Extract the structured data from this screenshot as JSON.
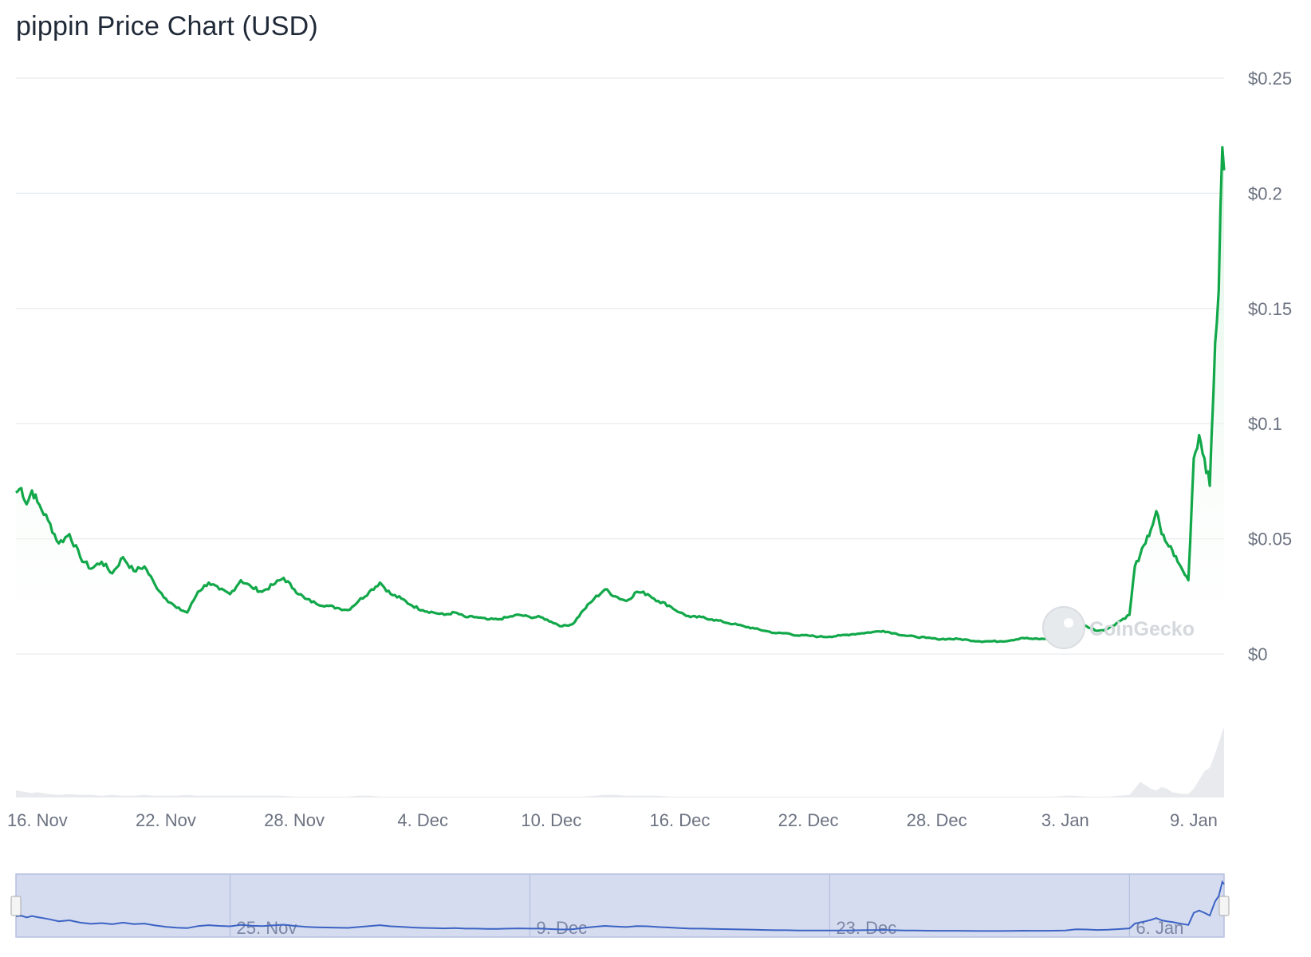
{
  "chart_title": "pippin Price Chart (USD)",
  "watermark": "CoinGecko",
  "colors": {
    "line": "#12a84a",
    "area_top": "#d8f2df",
    "grid": "#e6e9ee",
    "volume": "#e8eaee",
    "navigator_fill": "#d5dcef",
    "navigator_line": "#3c63c4",
    "navigator_border": "#b5c0e0"
  },
  "chart_data": {
    "type": "line",
    "title": "pippin Price Chart (USD)",
    "xlabel": "",
    "ylabel": "",
    "y_ticks": [
      "$0",
      "$0.05",
      "$0.1",
      "$0.15",
      "$0.2",
      "$0.25"
    ],
    "y_tick_values": [
      0,
      0.05,
      0.1,
      0.15,
      0.2,
      0.25
    ],
    "ylim": [
      0,
      0.25
    ],
    "xlim": [
      "2024-11-15T00:00",
      "2025-01-10T10:00"
    ],
    "x_ticks": [
      "16. Nov",
      "22. Nov",
      "28. Nov",
      "4. Dec",
      "10. Dec",
      "16. Dec",
      "22. Dec",
      "28. Dec",
      "3. Jan",
      "9. Jan"
    ],
    "x_tick_dates": [
      "2024-11-16",
      "2024-11-22",
      "2024-11-28",
      "2024-12-04",
      "2024-12-10",
      "2024-12-16",
      "2024-12-22",
      "2024-12-28",
      "2025-01-03",
      "2025-01-09"
    ],
    "grid": true,
    "legend": "none",
    "series": [
      {
        "x": [
          "2024-11-15T00:00",
          "2024-11-15T06:00",
          "2024-11-15T12:00",
          "2024-11-15T18:00",
          "2024-11-16T00:00",
          "2024-11-16T12:00",
          "2024-11-17T00:00",
          "2024-11-17T12:00",
          "2024-11-18T00:00",
          "2024-11-18T12:00",
          "2024-11-19T00:00",
          "2024-11-19T12:00",
          "2024-11-20T00:00",
          "2024-11-20T12:00",
          "2024-11-21T00:00",
          "2024-11-21T12:00",
          "2024-11-22T00:00",
          "2024-11-22T12:00",
          "2024-11-23T00:00",
          "2024-11-23T12:00",
          "2024-11-24T00:00",
          "2024-11-24T12:00",
          "2024-11-25T00:00",
          "2024-11-25T12:00",
          "2024-11-26T00:00",
          "2024-11-26T12:00",
          "2024-11-27T00:00",
          "2024-11-27T12:00",
          "2024-11-28T00:00",
          "2024-11-28T12:00",
          "2024-11-29T00:00",
          "2024-11-29T12:00",
          "2024-11-30T00:00",
          "2024-11-30T12:00",
          "2024-12-01T00:00",
          "2024-12-01T12:00",
          "2024-12-02T00:00",
          "2024-12-02T12:00",
          "2024-12-03T00:00",
          "2024-12-03T12:00",
          "2024-12-04T00:00",
          "2024-12-04T12:00",
          "2024-12-05T00:00",
          "2024-12-05T12:00",
          "2024-12-06T00:00",
          "2024-12-06T12:00",
          "2024-12-07T00:00",
          "2024-12-07T12:00",
          "2024-12-08T00:00",
          "2024-12-08T12:00",
          "2024-12-09T00:00",
          "2024-12-09T12:00",
          "2024-12-10T00:00",
          "2024-12-10T12:00",
          "2024-12-11T00:00",
          "2024-12-11T12:00",
          "2024-12-12T00:00",
          "2024-12-12T12:00",
          "2024-12-13T00:00",
          "2024-12-13T12:00",
          "2024-12-14T00:00",
          "2024-12-14T12:00",
          "2024-12-15T00:00",
          "2024-12-15T12:00",
          "2024-12-16T00:00",
          "2024-12-16T12:00",
          "2024-12-17T00:00",
          "2024-12-17T12:00",
          "2024-12-18T00:00",
          "2024-12-18T12:00",
          "2024-12-19T00:00",
          "2024-12-19T12:00",
          "2024-12-20T00:00",
          "2024-12-20T12:00",
          "2024-12-21T00:00",
          "2024-12-21T12:00",
          "2024-12-22T00:00",
          "2024-12-22T12:00",
          "2024-12-23T00:00",
          "2024-12-23T12:00",
          "2024-12-24T00:00",
          "2024-12-24T12:00",
          "2024-12-25T00:00",
          "2024-12-25T12:00",
          "2024-12-26T00:00",
          "2024-12-26T12:00",
          "2024-12-27T00:00",
          "2024-12-27T12:00",
          "2024-12-28T00:00",
          "2024-12-28T12:00",
          "2024-12-29T00:00",
          "2024-12-29T12:00",
          "2024-12-30T00:00",
          "2024-12-30T12:00",
          "2024-12-31T00:00",
          "2024-12-31T12:00",
          "2025-01-01T00:00",
          "2025-01-01T12:00",
          "2025-01-02T00:00",
          "2025-01-02T12:00",
          "2025-01-03T00:00",
          "2025-01-03T12:00",
          "2025-01-04T00:00",
          "2025-01-04T12:00",
          "2025-01-05T00:00",
          "2025-01-05T12:00",
          "2025-01-06T00:00",
          "2025-01-06T06:00",
          "2025-01-06T12:00",
          "2025-01-06T18:00",
          "2025-01-07T00:00",
          "2025-01-07T06:00",
          "2025-01-07T12:00",
          "2025-01-07T18:00",
          "2025-01-08T00:00",
          "2025-01-08T06:00",
          "2025-01-08T12:00",
          "2025-01-08T18:00",
          "2025-01-09T00:00",
          "2025-01-09T06:00",
          "2025-01-09T12:00",
          "2025-01-09T18:00",
          "2025-01-10T00:00",
          "2025-01-10T04:00",
          "2025-01-10T08:00",
          "2025-01-10T10:00"
        ],
        "y": [
          0.07,
          0.072,
          0.065,
          0.071,
          0.066,
          0.058,
          0.048,
          0.052,
          0.042,
          0.037,
          0.04,
          0.035,
          0.042,
          0.036,
          0.038,
          0.03,
          0.024,
          0.02,
          0.018,
          0.027,
          0.031,
          0.028,
          0.026,
          0.032,
          0.029,
          0.027,
          0.03,
          0.033,
          0.028,
          0.024,
          0.022,
          0.021,
          0.02,
          0.019,
          0.023,
          0.027,
          0.031,
          0.026,
          0.024,
          0.021,
          0.019,
          0.018,
          0.017,
          0.018,
          0.016,
          0.016,
          0.015,
          0.015,
          0.016,
          0.017,
          0.016,
          0.016,
          0.014,
          0.012,
          0.013,
          0.019,
          0.024,
          0.028,
          0.025,
          0.023,
          0.027,
          0.026,
          0.023,
          0.021,
          0.018,
          0.016,
          0.016,
          0.015,
          0.014,
          0.013,
          0.012,
          0.011,
          0.01,
          0.009,
          0.009,
          0.008,
          0.008,
          0.0075,
          0.0075,
          0.008,
          0.0085,
          0.009,
          0.0095,
          0.01,
          0.009,
          0.008,
          0.0075,
          0.007,
          0.0065,
          0.0065,
          0.0065,
          0.006,
          0.0055,
          0.0055,
          0.0055,
          0.006,
          0.007,
          0.0065,
          0.0065,
          0.007,
          0.008,
          0.013,
          0.012,
          0.01,
          0.011,
          0.014,
          0.017,
          0.038,
          0.043,
          0.048,
          0.054,
          0.062,
          0.052,
          0.048,
          0.045,
          0.04,
          0.036,
          0.032,
          0.085,
          0.095,
          0.085,
          0.073,
          0.135,
          0.158,
          0.22,
          0.21
        ]
      }
    ],
    "volume_series_note": ""
  },
  "volume": [
    0.08,
    0.07,
    0.06,
    0.05,
    0.06,
    0.04,
    0.03,
    0.04,
    0.03,
    0.03,
    0.02,
    0.03,
    0.02,
    0.02,
    0.03,
    0.02,
    0.02,
    0.02,
    0.03,
    0.02,
    0.02,
    0.02,
    0.02,
    0.02,
    0.02,
    0.02,
    0.02,
    0.02,
    0.01,
    0.01,
    0.01,
    0.01,
    0.01,
    0.01,
    0.02,
    0.02,
    0.01,
    0.01,
    0.01,
    0.01,
    0.01,
    0.01,
    0.01,
    0.01,
    0.01,
    0.01,
    0.01,
    0.01,
    0.01,
    0.01,
    0.01,
    0.01,
    0.01,
    0.01,
    0.01,
    0.01,
    0.02,
    0.03,
    0.03,
    0.02,
    0.02,
    0.02,
    0.02,
    0.01,
    0.01,
    0.01,
    0.01,
    0.01,
    0.01,
    0.01,
    0.01,
    0.01,
    0.01,
    0.01,
    0.01,
    0.01,
    0.01,
    0.01,
    0.01,
    0.01,
    0.01,
    0.01,
    0.01,
    0.01,
    0.01,
    0.01,
    0.01,
    0.01,
    0.01,
    0.01,
    0.01,
    0.01,
    0.01,
    0.01,
    0.01,
    0.01,
    0.01,
    0.01,
    0.01,
    0.01,
    0.02,
    0.02,
    0.01,
    0.01,
    0.01,
    0.02,
    0.03,
    0.1,
    0.18,
    0.14,
    0.1,
    0.08,
    0.12,
    0.1,
    0.06,
    0.05,
    0.04,
    0.04,
    0.1,
    0.2,
    0.3,
    0.34,
    0.5,
    0.62,
    0.75,
    0.8
  ],
  "navigator": {
    "ticks": [
      "25. Nov",
      "9. Dec",
      "23. Dec",
      "6. Jan"
    ],
    "tick_dates": [
      "2024-11-25",
      "2024-12-09",
      "2024-12-23",
      "2025-01-06"
    ]
  }
}
